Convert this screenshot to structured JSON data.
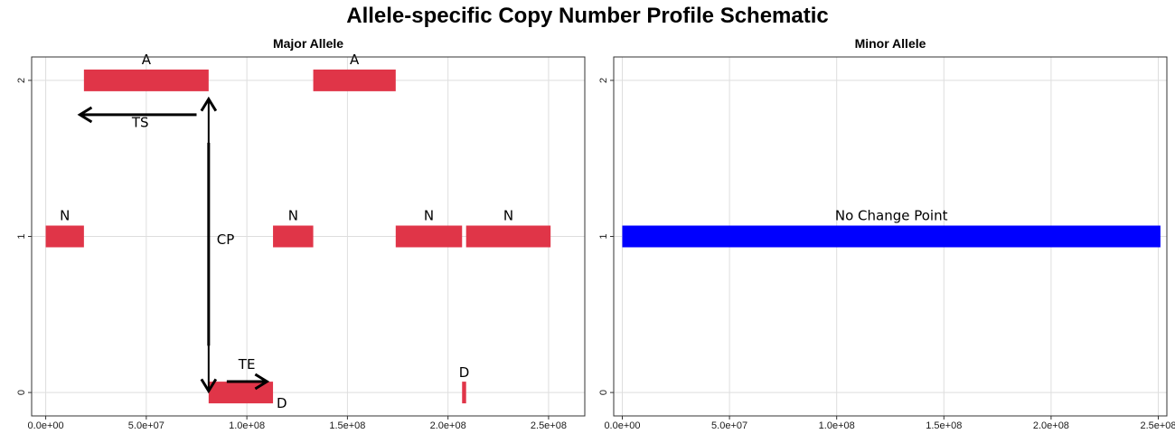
{
  "title": "Allele-specific Copy Number Profile Schematic",
  "colors": {
    "segment_major": "#e03548",
    "segment_minor": "#0000ff",
    "arrow": "#000000",
    "grid": "#dedede",
    "panel_border": "#333333"
  },
  "chart_data": [
    {
      "type": "segments",
      "title": "Major Allele",
      "xlim": [
        -7000000,
        268000000
      ],
      "ylim": [
        -0.15,
        2.15
      ],
      "x_ticks": [
        0,
        50000000,
        100000000,
        150000000,
        200000000,
        250000000
      ],
      "x_tick_labels": [
        "0.0e+00",
        "5.0e+07",
        "1.0e+08",
        "1.5e+08",
        "2.0e+08",
        "2.5e+08"
      ],
      "y_ticks": [
        0,
        1,
        2
      ],
      "y_tick_labels": [
        "0",
        "1",
        "2"
      ],
      "grid": true,
      "segments": [
        {
          "x0": 0,
          "x1": 19000000,
          "y": 1,
          "label": "N"
        },
        {
          "x0": 19000000,
          "x1": 81000000,
          "y": 2,
          "label": "A"
        },
        {
          "x0": 81000000,
          "x1": 113000000,
          "y": 0,
          "label": "D"
        },
        {
          "x0": 113000000,
          "x1": 133000000,
          "y": 1,
          "label": "N"
        },
        {
          "x0": 133000000,
          "x1": 174000000,
          "y": 2,
          "label": "A"
        },
        {
          "x0": 174000000,
          "x1": 207000000,
          "y": 1,
          "label": "N"
        },
        {
          "x0": 207000000,
          "x1": 209000000,
          "y": 0,
          "label": "D"
        },
        {
          "x0": 209000000,
          "x1": 251000000,
          "y": 1,
          "label": "N"
        }
      ],
      "arrows": [
        {
          "label": "TS",
          "x0": 75000000,
          "x1": 17000000,
          "y0": 1.78,
          "y1": 1.78,
          "label_x": 47000000,
          "label_y": 1.7
        },
        {
          "label": "TE",
          "x0": 90000000,
          "x1": 110000000,
          "y0": 0.07,
          "y1": 0.07,
          "label_x": 100000000,
          "label_y": 0.15
        },
        {
          "label": "CP",
          "x0": 81000000,
          "x1": 81000000,
          "y0": 1.6,
          "y1": 0.3,
          "label_x": 85000000,
          "label_y": 0.95,
          "double_headed": true
        }
      ]
    },
    {
      "type": "segments",
      "title": "Minor Allele",
      "xlim": [
        -4000000,
        254000000
      ],
      "ylim": [
        -0.15,
        2.15
      ],
      "x_ticks": [
        0,
        50000000,
        100000000,
        150000000,
        200000000,
        250000000
      ],
      "x_tick_labels": [
        "0.0e+00",
        "5.0e+07",
        "1.0e+08",
        "1.5e+08",
        "2.0e+08",
        "2.5e+08"
      ],
      "y_ticks": [
        0,
        1,
        2
      ],
      "y_tick_labels": [
        "0",
        "1",
        "2"
      ],
      "grid": true,
      "segments": [
        {
          "x0": 0,
          "x1": 251000000,
          "y": 1,
          "label": "No Change Point"
        }
      ]
    }
  ]
}
